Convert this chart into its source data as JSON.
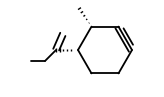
{
  "bg_color": "#ffffff",
  "line_color": "#000000",
  "line_width": 1.3,
  "figsize": [
    1.64,
    0.97
  ],
  "dpi": 100,
  "n_dash": 7,
  "dash_lw": 1.0
}
